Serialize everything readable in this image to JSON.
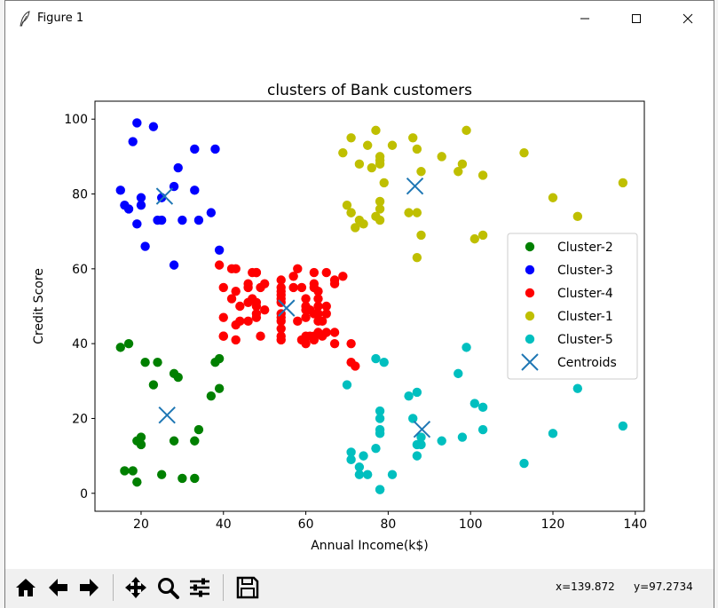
{
  "window": {
    "title": "Figure 1"
  },
  "titlebar": {
    "minimize_icon": "minimize-icon",
    "maximize_icon": "maximize-icon",
    "close_icon": "close-icon"
  },
  "toolbar": {
    "buttons": [
      "home-icon",
      "back-arrow-icon",
      "forward-arrow-icon",
      "pan-icon",
      "zoom-icon",
      "subplots-icon",
      "save-icon"
    ],
    "coord_x": "x=139.872",
    "coord_y": "y=97.2734"
  },
  "chart_data": {
    "type": "scatter",
    "title": "clusters of Bank customers",
    "xlabel": "Annual Income(k$)",
    "ylabel": "Credit Score",
    "xlim": [
      8.8,
      142.2
    ],
    "ylim": [
      -4.8,
      104.8
    ],
    "xticks": [
      20,
      40,
      60,
      80,
      100,
      120,
      140
    ],
    "yticks": [
      0,
      20,
      40,
      60,
      80,
      100
    ],
    "grid": false,
    "legend_position": "center-right",
    "series": [
      {
        "name": "Cluster-2",
        "color": "#008000",
        "marker": "circle",
        "points": [
          [
            15,
            39
          ],
          [
            16,
            6
          ],
          [
            17,
            40
          ],
          [
            18,
            6
          ],
          [
            19,
            3
          ],
          [
            19,
            14
          ],
          [
            20,
            15
          ],
          [
            20,
            13
          ],
          [
            21,
            35
          ],
          [
            23,
            29
          ],
          [
            24,
            35
          ],
          [
            25,
            5
          ],
          [
            28,
            32
          ],
          [
            28,
            14
          ],
          [
            29,
            31
          ],
          [
            30,
            4
          ],
          [
            33,
            4
          ],
          [
            33,
            14
          ],
          [
            34,
            17
          ],
          [
            37,
            26
          ],
          [
            38,
            35
          ],
          [
            39,
            36
          ],
          [
            39,
            28
          ]
        ]
      },
      {
        "name": "Cluster-3",
        "color": "#0000ff",
        "marker": "circle",
        "points": [
          [
            15,
            81
          ],
          [
            16,
            77
          ],
          [
            17,
            76
          ],
          [
            18,
            94
          ],
          [
            19,
            99
          ],
          [
            19,
            72
          ],
          [
            20,
            77
          ],
          [
            20,
            79
          ],
          [
            21,
            66
          ],
          [
            23,
            98
          ],
          [
            24,
            73
          ],
          [
            25,
            73
          ],
          [
            25,
            79
          ],
          [
            28,
            82
          ],
          [
            28,
            61
          ],
          [
            29,
            87
          ],
          [
            30,
            73
          ],
          [
            33,
            92
          ],
          [
            33,
            81
          ],
          [
            34,
            73
          ],
          [
            37,
            75
          ],
          [
            38,
            92
          ],
          [
            39,
            65
          ]
        ]
      },
      {
        "name": "Cluster-4",
        "color": "#ff0000",
        "marker": "circle",
        "points": [
          [
            39,
            61
          ],
          [
            40,
            55
          ],
          [
            40,
            47
          ],
          [
            40,
            42
          ],
          [
            40,
            42
          ],
          [
            42,
            52
          ],
          [
            42,
            60
          ],
          [
            43,
            54
          ],
          [
            43,
            60
          ],
          [
            43,
            45
          ],
          [
            43,
            41
          ],
          [
            44,
            50
          ],
          [
            44,
            46
          ],
          [
            46,
            51
          ],
          [
            46,
            46
          ],
          [
            46,
            56
          ],
          [
            46,
            55
          ],
          [
            47,
            52
          ],
          [
            47,
            59
          ],
          [
            48,
            51
          ],
          [
            48,
            59
          ],
          [
            48,
            50
          ],
          [
            48,
            48
          ],
          [
            48,
            59
          ],
          [
            48,
            47
          ],
          [
            49,
            55
          ],
          [
            49,
            42
          ],
          [
            50,
            49
          ],
          [
            50,
            56
          ],
          [
            54,
            47
          ],
          [
            54,
            54
          ],
          [
            54,
            53
          ],
          [
            54,
            48
          ],
          [
            54,
            52
          ],
          [
            54,
            42
          ],
          [
            54,
            51
          ],
          [
            54,
            55
          ],
          [
            54,
            41
          ],
          [
            54,
            44
          ],
          [
            54,
            57
          ],
          [
            54,
            46
          ],
          [
            57,
            58
          ],
          [
            57,
            55
          ],
          [
            58,
            60
          ],
          [
            58,
            46
          ],
          [
            59,
            55
          ],
          [
            59,
            41
          ],
          [
            60,
            49
          ],
          [
            60,
            40
          ],
          [
            60,
            42
          ],
          [
            60,
            52
          ],
          [
            60,
            47
          ],
          [
            60,
            50
          ],
          [
            61,
            42
          ],
          [
            61,
            49
          ],
          [
            62,
            41
          ],
          [
            62,
            48
          ],
          [
            62,
            59
          ],
          [
            62,
            55
          ],
          [
            62,
            56
          ],
          [
            62,
            42
          ],
          [
            63,
            50
          ],
          [
            63,
            46
          ],
          [
            63,
            43
          ],
          [
            63,
            48
          ],
          [
            63,
            52
          ],
          [
            63,
            54
          ],
          [
            64,
            42
          ],
          [
            64,
            46
          ],
          [
            65,
            48
          ],
          [
            65,
            50
          ],
          [
            65,
            43
          ],
          [
            65,
            59
          ],
          [
            67,
            43
          ],
          [
            67,
            57
          ],
          [
            67,
            56
          ],
          [
            67,
            40
          ],
          [
            69,
            58
          ],
          [
            71,
            35
          ],
          [
            72,
            34
          ],
          [
            71,
            40
          ]
        ]
      },
      {
        "name": "Cluster-1",
        "color": "#bfbf00",
        "marker": "circle",
        "points": [
          [
            69,
            91
          ],
          [
            70,
            77
          ],
          [
            71,
            95
          ],
          [
            71,
            75
          ],
          [
            71,
            75
          ],
          [
            72,
            71
          ],
          [
            73,
            88
          ],
          [
            73,
            73
          ],
          [
            74,
            72
          ],
          [
            75,
            93
          ],
          [
            76,
            87
          ],
          [
            77,
            97
          ],
          [
            77,
            74
          ],
          [
            78,
            90
          ],
          [
            78,
            88
          ],
          [
            78,
            76
          ],
          [
            78,
            89
          ],
          [
            78,
            78
          ],
          [
            78,
            73
          ],
          [
            79,
            83
          ],
          [
            81,
            93
          ],
          [
            85,
            75
          ],
          [
            86,
            95
          ],
          [
            87,
            63
          ],
          [
            87,
            75
          ],
          [
            87,
            92
          ],
          [
            88,
            86
          ],
          [
            88,
            69
          ],
          [
            93,
            90
          ],
          [
            97,
            86
          ],
          [
            98,
            88
          ],
          [
            99,
            97
          ],
          [
            101,
            68
          ],
          [
            103,
            85
          ],
          [
            103,
            69
          ],
          [
            113,
            91
          ],
          [
            120,
            79
          ],
          [
            126,
            74
          ],
          [
            137,
            83
          ]
        ]
      },
      {
        "name": "Cluster-5",
        "color": "#00bfbf",
        "marker": "circle",
        "points": [
          [
            70,
            29
          ],
          [
            71,
            11
          ],
          [
            71,
            9
          ],
          [
            73,
            5
          ],
          [
            73,
            7
          ],
          [
            74,
            10
          ],
          [
            75,
            5
          ],
          [
            77,
            12
          ],
          [
            77,
            36
          ],
          [
            78,
            22
          ],
          [
            78,
            17
          ],
          [
            78,
            20
          ],
          [
            78,
            16
          ],
          [
            78,
            1
          ],
          [
            78,
            1
          ],
          [
            79,
            35
          ],
          [
            81,
            5
          ],
          [
            85,
            26
          ],
          [
            86,
            20
          ],
          [
            87,
            27
          ],
          [
            87,
            13
          ],
          [
            87,
            10
          ],
          [
            88,
            13
          ],
          [
            88,
            15
          ],
          [
            93,
            14
          ],
          [
            97,
            32
          ],
          [
            98,
            15
          ],
          [
            99,
            39
          ],
          [
            101,
            24
          ],
          [
            103,
            17
          ],
          [
            103,
            23
          ],
          [
            113,
            8
          ],
          [
            120,
            16
          ],
          [
            126,
            28
          ],
          [
            137,
            18
          ]
        ]
      },
      {
        "name": "Centroids",
        "color": "#1f77b4",
        "marker": "x",
        "points": [
          [
            26.3,
            20.9
          ],
          [
            25.7,
            79.4
          ],
          [
            55.3,
            49.5
          ],
          [
            86.5,
            82.1
          ],
          [
            88.2,
            17.1
          ]
        ]
      }
    ]
  }
}
